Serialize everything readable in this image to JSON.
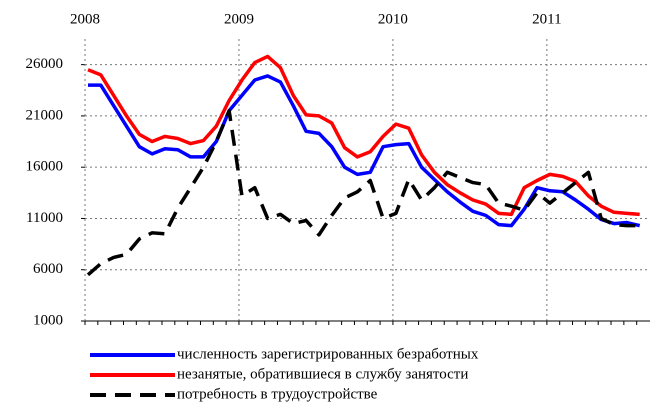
{
  "chart_data": {
    "type": "line",
    "categories": [
      "2008",
      null,
      null,
      null,
      null,
      null,
      null,
      null,
      null,
      null,
      null,
      null,
      "2009",
      null,
      null,
      null,
      null,
      null,
      null,
      null,
      null,
      null,
      null,
      null,
      "2010",
      null,
      null,
      null,
      null,
      null,
      null,
      null,
      null,
      null,
      null,
      null,
      "2011",
      null,
      null,
      null,
      null,
      null,
      null,
      null
    ],
    "series": [
      {
        "name": "численность зарегистрированных безработных",
        "color": "#0000ff",
        "dash": false,
        "values": [
          24000,
          24000,
          22000,
          20000,
          18000,
          17300,
          17800,
          17700,
          17000,
          17000,
          18500,
          21500,
          23000,
          24500,
          24900,
          24300,
          22000,
          19500,
          19300,
          18000,
          16000,
          15300,
          15500,
          18000,
          18200,
          18300,
          16000,
          14800,
          13600,
          12600,
          11700,
          11300,
          10400,
          10300,
          11900,
          14000,
          13700,
          13600,
          12800,
          11900,
          10900,
          10500,
          10600,
          10300
        ]
      },
      {
        "name": "незанятые, обратившиеся в службу занятости",
        "color": "#ff0000",
        "dash": false,
        "values": [
          25500,
          25000,
          23000,
          21000,
          19200,
          18500,
          19000,
          18800,
          18300,
          18600,
          20000,
          22500,
          24500,
          26200,
          26800,
          25700,
          23000,
          21100,
          21000,
          20300,
          17900,
          17000,
          17500,
          19000,
          20200,
          19800,
          17200,
          15500,
          14300,
          13500,
          12800,
          12400,
          11500,
          11400,
          14000,
          14700,
          15300,
          15100,
          14600,
          13200,
          12200,
          11600,
          11500,
          11400
        ]
      },
      {
        "name": "потребность в трудоустройстве",
        "color": "#000000",
        "dash": true,
        "values": [
          5500,
          6600,
          7200,
          7500,
          9000,
          9600,
          9500,
          12000,
          14000,
          16000,
          18500,
          21500,
          13200,
          14000,
          11000,
          11400,
          10500,
          10800,
          9400,
          11300,
          13000,
          13600,
          14700,
          11000,
          11500,
          14800,
          12800,
          14000,
          15500,
          15000,
          14500,
          14300,
          12500,
          12200,
          11800,
          13500,
          12500,
          13500,
          14500,
          15500,
          11000,
          10400,
          10300,
          10300
        ]
      }
    ],
    "ylim": [
      1000,
      28500
    ],
    "yticks": [
      1000,
      6000,
      11000,
      16000,
      21000,
      26000
    ],
    "grid": true
  }
}
